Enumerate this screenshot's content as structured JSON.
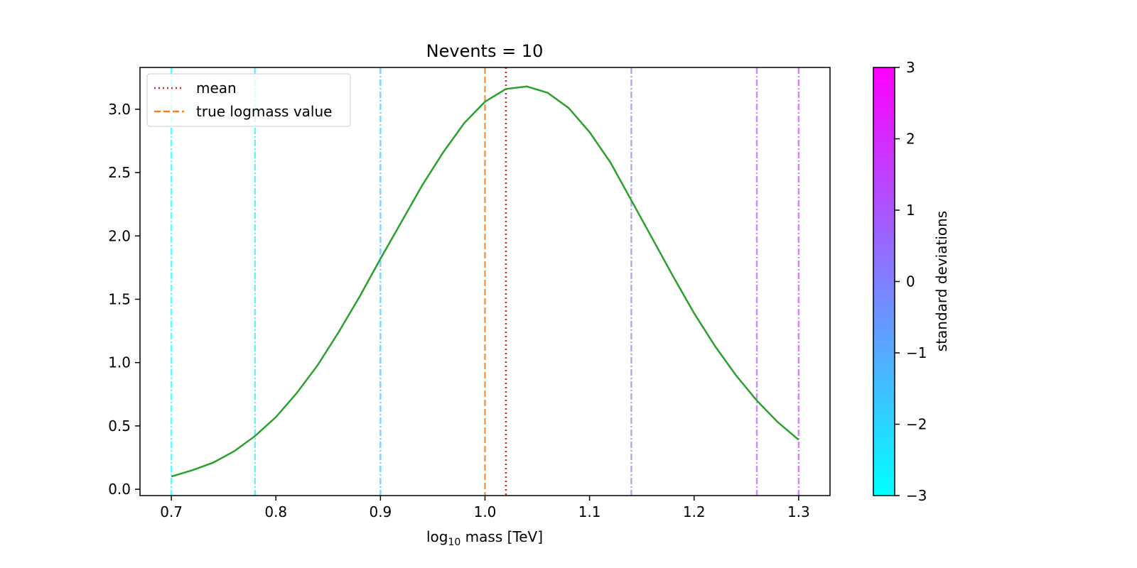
{
  "chart_data": {
    "type": "line",
    "title": "Nevents = 10",
    "xlabel": {
      "prefix": "log",
      "sub": "10",
      "suffix": " mass [TeV]"
    },
    "ylabel": "",
    "xlim": [
      0.67,
      1.33
    ],
    "ylim": [
      -0.05,
      3.33
    ],
    "xticks": [
      0.7,
      0.8,
      0.9,
      1.0,
      1.1,
      1.2,
      1.3
    ],
    "xtick_labels": [
      "0.7",
      "0.8",
      "0.9",
      "1.0",
      "1.1",
      "1.2",
      "1.3"
    ],
    "yticks": [
      0.0,
      0.5,
      1.0,
      1.5,
      2.0,
      2.5,
      3.0
    ],
    "ytick_labels": [
      "0.0",
      "0.5",
      "1.0",
      "1.5",
      "2.0",
      "2.5",
      "3.0"
    ],
    "grid": false,
    "legend_position": "top-left",
    "curve": {
      "color": "#2ca02c",
      "x": [
        0.7,
        0.72,
        0.74,
        0.76,
        0.78,
        0.8,
        0.82,
        0.84,
        0.86,
        0.88,
        0.9,
        0.92,
        0.94,
        0.96,
        0.98,
        1.0,
        1.02,
        1.04,
        1.06,
        1.08,
        1.1,
        1.12,
        1.14,
        1.16,
        1.18,
        1.2,
        1.22,
        1.24,
        1.26,
        1.28,
        1.3
      ],
      "y": [
        0.1,
        0.15,
        0.21,
        0.3,
        0.42,
        0.57,
        0.76,
        0.98,
        1.24,
        1.52,
        1.82,
        2.11,
        2.4,
        2.66,
        2.89,
        3.06,
        3.16,
        3.18,
        3.13,
        3.01,
        2.82,
        2.58,
        2.28,
        1.98,
        1.68,
        1.39,
        1.13,
        0.9,
        0.7,
        0.53,
        0.39
      ]
    },
    "legend": [
      {
        "label": "mean",
        "color": "#d62728",
        "style": "dotted"
      },
      {
        "label": "true logmass value",
        "color": "#ff7f0e",
        "style": "dashed"
      }
    ],
    "reference_lines": [
      {
        "kind": "mean",
        "x": 1.02,
        "color": "#d62728",
        "style": "dotted"
      },
      {
        "kind": "true",
        "x": 1.0,
        "color": "#ff7f0e",
        "style": "dashed"
      }
    ],
    "sigma_lines": [
      {
        "x": 0.7,
        "sigma": -3.0
      },
      {
        "x": 0.78,
        "sigma": -2.5
      },
      {
        "x": 0.9,
        "sigma": -1.5
      },
      {
        "x": 1.14,
        "sigma": 0.0
      },
      {
        "x": 1.26,
        "sigma": 1.0
      },
      {
        "x": 1.3,
        "sigma": 1.5
      }
    ],
    "colorbar": {
      "label": "standard deviations",
      "range": [
        -3,
        3
      ],
      "colormap": [
        "#00ffff",
        "#ff00ff"
      ],
      "ticks": [
        -3,
        -2,
        -1,
        0,
        1,
        2,
        3
      ],
      "tick_labels": [
        "−3",
        "−2",
        "−1",
        "0",
        "1",
        "2",
        "3"
      ]
    }
  }
}
